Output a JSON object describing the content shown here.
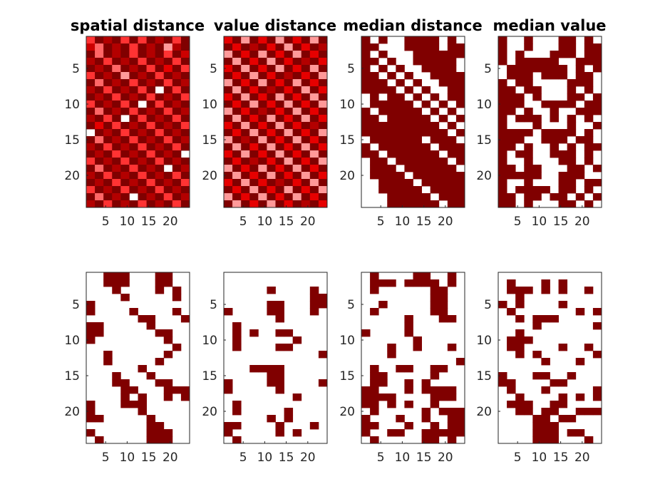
{
  "figure": {
    "background": "#ffffff"
  },
  "chart_data": [
    {
      "type": "heatmap",
      "colormap": "reds-continuous",
      "title": "spatial distance",
      "rows": 24,
      "cols": 12,
      "xticks": [
        5,
        10,
        15,
        20
      ],
      "yticks": [
        5,
        10,
        15,
        20
      ],
      "note_x_axis": "tick labels 5,10,15,20 printed across the 12 columns (x range 0.5–24.5)",
      "values": [
        "4a8a4a4a8b4a",
        "73a8a4a8a28a",
        "a3a8a4a8a4a7",
        "8a4a8a4a8a4a",
        "a8a3a8a4a6a4",
        "4a8a2a8a4a8a",
        "a3a8a4a8a4a8",
        "8a4a8a4a0a4a",
        "a8a4a8a4a8a4",
        "4a8a4a0a4a8a",
        "a3a8a4a8a4a8",
        "8a4a0a4a8a4a",
        "a6a4a8a4a8a4",
        "0a8a4a8a4a8a",
        "a3a8a4a8a4a8",
        "8a4a8a4a8a4a",
        "a8a4a8a4a8a0",
        "4a8a4a8a4a8a",
        "a3a8a4a8a0a8",
        "8a4a8a4a8a4a",
        "a8a4a8a4a8a4",
        "4a8a4a8a4a8a",
        "a3a8a0a8a4a8",
        "8a4a8a4a8a4a"
      ]
    },
    {
      "type": "heatmap",
      "colormap": "reds-continuous",
      "title": "value distance",
      "rows": 24,
      "cols": 12,
      "xticks": [
        5,
        10,
        15,
        20
      ],
      "yticks": [
        5,
        10,
        15,
        20
      ],
      "values": [
        "6a2a6a2a6a2a",
        "a6a8a6a2a6a8",
        "2a6a2a6a2a6a",
        "a2a6a2a6a8a6",
        "6a2a6a2a6a2a",
        "a6a2a6a8a6a2",
        "2a6a2a6a2a6a",
        "a2a6a8a6a2a6",
        "6a2a6a2a6a2a",
        "a6a2a6a2a6a2",
        "2a6a8a6a2a6a",
        "a2a6a2a6a2a6",
        "6a2a6a2a6a8a",
        "a6a2a6a2a6a2",
        "2a8a2a6a2a6a",
        "a2a6a2a6a2a6",
        "6a2a6a2a6a2a",
        "a6a8a6a2a6a2",
        "2a6a2a6a2a6a",
        "a2a6a2a6a2a6",
        "6a2a6a8a6a2a",
        "a6a2a6a2a6a2",
        "2a6a2a6a2a6a",
        "a2a6a2a6a8a6"
      ]
    },
    {
      "type": "heatmap",
      "colormap": "binary-darkred",
      "title": "median distance",
      "rows": 24,
      "cols": 12,
      "xticks": [
        5,
        10,
        15,
        20
      ],
      "yticks": [
        5,
        10,
        15,
        20
      ],
      "values": [
        "101001111010",
        "110001111011",
        "101000111111",
        "110100111110",
        "101010011110",
        "110101001111",
        "111010100111",
        "111101010011",
        "010110101011",
        "011111010101",
        "101111101010",
        "110111110101",
        "111111111010",
        "111111111101",
        "011111101110",
        "101111110111",
        "110111111011",
        "011011111101",
        "011101111110",
        "011110111111",
        "001111011111",
        "001111101111",
        "000111110111",
        "000111111011"
      ]
    },
    {
      "type": "heatmap",
      "colormap": "binary-darkred",
      "title": "median value",
      "rows": 24,
      "cols": 12,
      "xticks": [
        5,
        10,
        15,
        20
      ],
      "yticks": [
        5,
        10,
        15,
        20
      ],
      "values": [
        "100100011010",
        "100100011011",
        "101000111011",
        "101111100111",
        "011111110101",
        "011101110110",
        "101100001110",
        "110110001010",
        "111010001101",
        "111001111011",
        "110100100111",
        "101110101010",
        "100010001001",
        "111101111010",
        "111001110110",
        "110100101011",
        "101100111010",
        "100100011010",
        "110110001101",
        "111110011100",
        "100100011011",
        "101111011010",
        "110110110101",
        "110100011010"
      ]
    },
    {
      "type": "heatmap",
      "colormap": "binary-darkred",
      "title": "",
      "rows": 24,
      "cols": 12,
      "xticks": [
        5,
        10,
        15,
        20
      ],
      "yticks": [
        5,
        10,
        15,
        20
      ],
      "values": [
        "001110001100",
        "001110001100",
        "000100001010",
        "000010000010",
        "100000000000",
        "100001000010",
        "000000110001",
        "110000010000",
        "110000001100",
        "100000000100",
        "000000000010",
        "001000000100",
        "001000001000",
        "000000100000",
        "000100010000",
        "000110001100",
        "000011000111",
        "000010100101",
        "100011100000",
        "100000100000",
        "110000010000",
        "000000011000",
        "100000011100",
        "010000011100"
      ]
    },
    {
      "type": "heatmap",
      "colormap": "binary-darkred",
      "title": "",
      "rows": 24,
      "cols": 12,
      "xticks": [
        5,
        10,
        15,
        20
      ],
      "yticks": [
        5,
        10,
        15,
        20
      ],
      "values": [
        "000000000000",
        "000000000000",
        "000001000010",
        "000000000011",
        "000001100011",
        "100001100010",
        "000000100000",
        "010000000000",
        "010100110000",
        "010000001000",
        "010000110000",
        "000000000001",
        "000000000000",
        "000111100000",
        "000001100000",
        "100001100001",
        "100000100000",
        "000000001000",
        "010000000000",
        "010000010000",
        "000001010000",
        "110000100010",
        "100000101000",
        "010000000000"
      ]
    },
    {
      "type": "heatmap",
      "colormap": "binary-darkred",
      "title": "",
      "rows": 24,
      "cols": 12,
      "xticks": [
        5,
        10,
        15,
        20
      ],
      "yticks": [
        5,
        10,
        15,
        20
      ],
      "values": [
        "010000110010",
        "011101111010",
        "010000001100",
        "000000001100",
        "001000001100",
        "010000001100",
        "000001000110",
        "000001000000",
        "100001000000",
        "000000100000",
        "000100100010",
        "000100000000",
        "000000000001",
        "010011001100",
        "011000001000",
        "011001010000",
        "110001011110",
        "111100001110",
        "110101001000",
        "010000010111",
        "100010010011",
        "110001001011",
        "100110011111",
        "010000011010"
      ]
    },
    {
      "type": "heatmap",
      "colormap": "binary-darkred",
      "title": "",
      "rows": 24,
      "cols": 12,
      "xticks": [
        5,
        10,
        15,
        20
      ],
      "yticks": [
        5,
        10,
        15,
        20
      ],
      "values": [
        "000000000000",
        "010001010000",
        "011101010010",
        "001000000000",
        "101000010000",
        "010000000101",
        "001011100000",
        "000010000001",
        "001000000000",
        "011100000000",
        "011000010010",
        "001010000001",
        "000001000100",
        "000000000000",
        "100011001000",
        "110000110000",
        "010001000001",
        "001000010101",
        "011100110000",
        "001101100111",
        "000011011000",
        "000011100000",
        "000011101100",
        "000011100010"
      ]
    }
  ]
}
